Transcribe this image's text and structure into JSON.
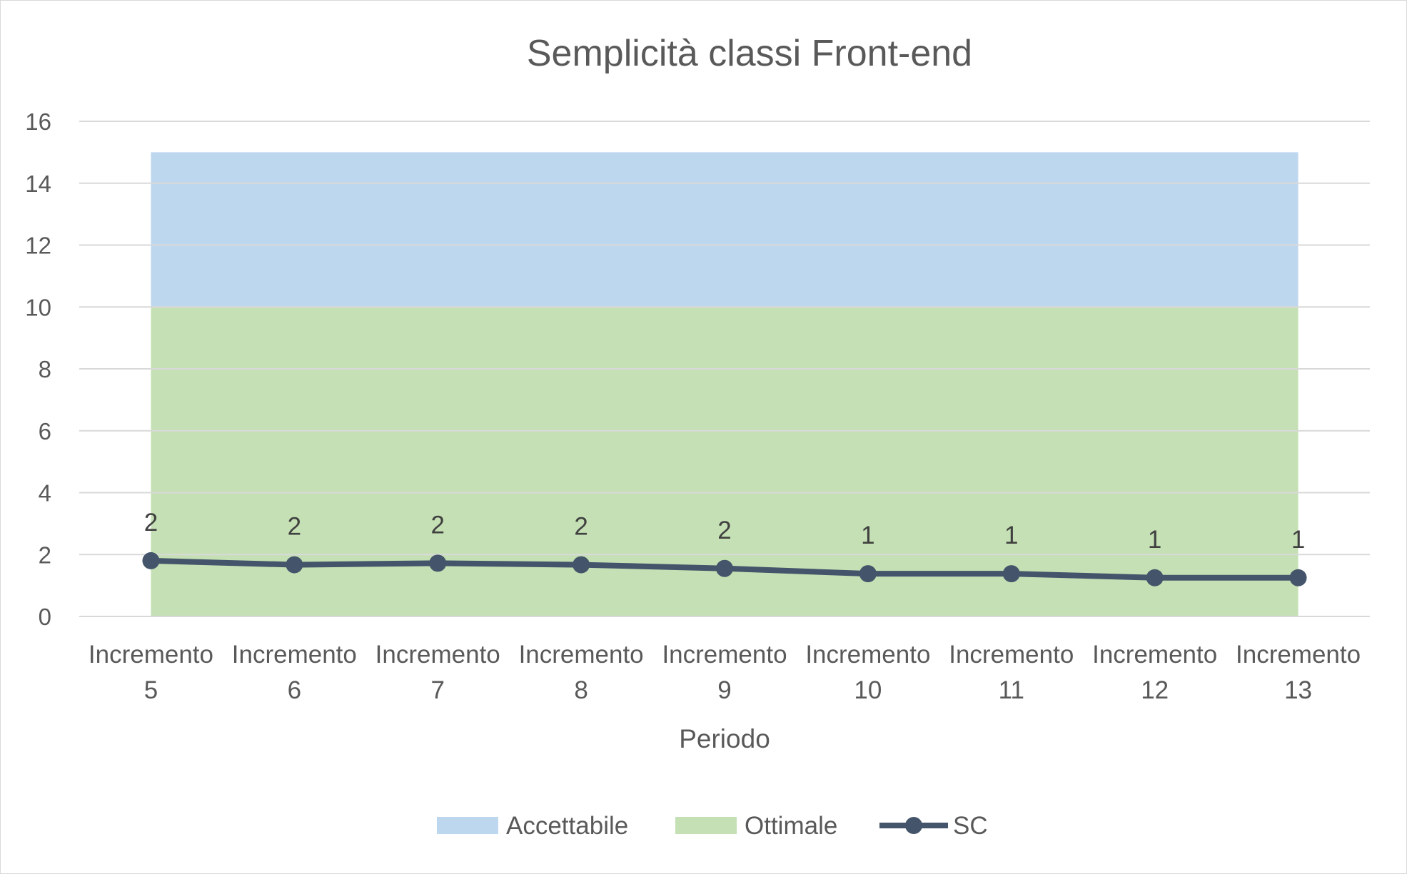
{
  "chart_data": {
    "type": "line",
    "title": "Semplicità classi Front-end",
    "xlabel": "Periodo",
    "ylabel": "",
    "ylim": [
      0,
      16
    ],
    "yticks": [
      0,
      2,
      4,
      6,
      8,
      10,
      12,
      14,
      16
    ],
    "grid": true,
    "legend_position": "bottom",
    "categories": [
      [
        "Incremento",
        "5"
      ],
      [
        "Incremento",
        "6"
      ],
      [
        "Incremento",
        "7"
      ],
      [
        "Incremento",
        "8"
      ],
      [
        "Incremento",
        "9"
      ],
      [
        "Incremento",
        "10"
      ],
      [
        "Incremento",
        "11"
      ],
      [
        "Incremento",
        "12"
      ],
      [
        "Incremento",
        "13"
      ]
    ],
    "bands": [
      {
        "name": "Accettabile",
        "from": 10,
        "to": 15,
        "color": "#bdd7ee"
      },
      {
        "name": "Ottimale",
        "from": 0,
        "to": 10,
        "color": "#c5e0b4"
      }
    ],
    "series": [
      {
        "name": "SC",
        "color": "#44546a",
        "values": [
          1.8,
          1.67,
          1.72,
          1.67,
          1.55,
          1.38,
          1.38,
          1.25,
          1.25
        ],
        "data_labels": [
          "2",
          "2",
          "2",
          "2",
          "2",
          "1",
          "1",
          "1",
          "1"
        ]
      }
    ]
  }
}
